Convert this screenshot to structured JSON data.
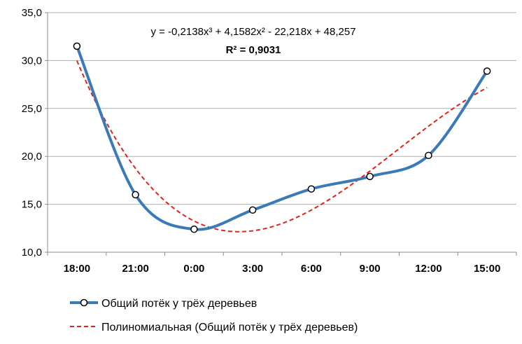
{
  "chart_data": {
    "type": "line",
    "categories": [
      "18:00",
      "21:00",
      "0:00",
      "3:00",
      "6:00",
      "9:00",
      "12:00",
      "15:00"
    ],
    "series": [
      {
        "name": "Общий потёк у трёх деревьев",
        "values": [
          31.5,
          16.0,
          12.4,
          14.4,
          16.6,
          17.9,
          20.1,
          28.9
        ],
        "color": "#3a7ab9",
        "marker": "circle",
        "smooth": true
      },
      {
        "name": "Полиномиальная (Общий потёк у трёх деревьев)",
        "type": "trendline-polynomial-3",
        "coefficients": [
          -0.2138,
          4.1582,
          -22.218,
          48.257
        ],
        "color": "#e0231c",
        "dash": "dashed"
      }
    ],
    "ylim": [
      10.0,
      35.0
    ],
    "yticks": [
      "10,0",
      "15,0",
      "20,0",
      "25,0",
      "30,0",
      "35,0"
    ],
    "grid": true,
    "legend_position": "bottom",
    "annotations": {
      "equation": "y = -0,2138x³ + 4,1582x² - 22,218x + 48,257",
      "r_squared": "R² = 0,9031"
    },
    "xlabel": "",
    "ylabel": ""
  }
}
